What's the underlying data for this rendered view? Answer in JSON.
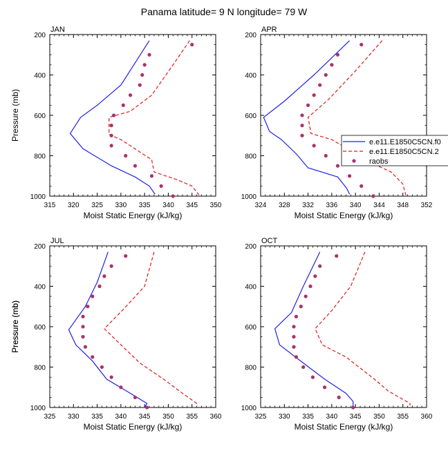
{
  "page_title": "Panama  latitude= 9 N longitude= 79 W",
  "colors": {
    "model1": "#1f1fe6",
    "model2": "#e01818",
    "raobs": "#a8336a",
    "frame": "#000000"
  },
  "legend": {
    "entries": [
      "e.e11.E1850C5CN.f0",
      "e.e11.E1850C5CN.2",
      "raobs"
    ]
  },
  "chart_data": [
    {
      "type": "line",
      "label": "JAN",
      "xlabel": "Moist Static Energy (kJ/kg)",
      "ylabel": "Pressure (mb)",
      "xlim": [
        315,
        350
      ],
      "xticks": [
        315,
        320,
        325,
        330,
        335,
        340,
        345,
        350
      ],
      "ylim": [
        200,
        1000
      ],
      "yticks": [
        200,
        400,
        600,
        800,
        1000
      ],
      "y_inverted": true,
      "series": [
        {
          "name": "e.e11.E1850C5CN.f0",
          "style": "solid",
          "points": [
            [
              336,
              230
            ],
            [
              330,
              450
            ],
            [
              325,
              550
            ],
            [
              321.5,
              610
            ],
            [
              319.3,
              690
            ],
            [
              322,
              765
            ],
            [
              328,
              850
            ],
            [
              333,
              905
            ],
            [
              336,
              950
            ],
            [
              337.2,
              990
            ]
          ]
        },
        {
          "name": "e.e11.E1850C5CN.2",
          "style": "dashed",
          "points": [
            [
              344.5,
              230
            ],
            [
              341,
              350
            ],
            [
              336.5,
              500
            ],
            [
              332,
              580
            ],
            [
              327.5,
              610
            ],
            [
              327.5,
              695
            ],
            [
              330,
              720
            ],
            [
              336.5,
              820
            ],
            [
              337,
              880
            ],
            [
              342,
              920
            ],
            [
              345,
              950
            ],
            [
              346.5,
              995
            ]
          ]
        },
        {
          "name": "raobs",
          "style": "markers",
          "points": [
            [
              345,
              250
            ],
            [
              336,
              300
            ],
            [
              335,
              350
            ],
            [
              334.5,
              400
            ],
            [
              334,
              450
            ],
            [
              332,
              500
            ],
            [
              330.5,
              550
            ],
            [
              328.5,
              600
            ],
            [
              328,
              650
            ],
            [
              328,
              700
            ],
            [
              328,
              750
            ],
            [
              331,
              800
            ],
            [
              333,
              850
            ],
            [
              336.5,
              900
            ],
            [
              338.5,
              950
            ],
            [
              341,
              1000
            ]
          ]
        }
      ]
    },
    {
      "type": "line",
      "label": "APR",
      "xlabel": "Moist Static Energy (kJ/kg)",
      "ylabel": "",
      "xlim": [
        324,
        352
      ],
      "xticks": [
        324,
        328,
        332,
        336,
        340,
        344,
        348,
        352
      ],
      "ylim": [
        200,
        1000
      ],
      "yticks": [
        200,
        400,
        600,
        800,
        1000
      ],
      "y_inverted": true,
      "series": [
        {
          "name": "e.e11.E1850C5CN.f0",
          "style": "solid",
          "points": [
            [
              339,
              230
            ],
            [
              333,
              400
            ],
            [
              328,
              530
            ],
            [
              324.5,
              610
            ],
            [
              325.5,
              680
            ],
            [
              327.5,
              720
            ],
            [
              330,
              790
            ],
            [
              332,
              860
            ],
            [
              337,
              905
            ],
            [
              338.5,
              960
            ],
            [
              339,
              990
            ]
          ]
        },
        {
          "name": "e.e11.E1850C5CN.2",
          "style": "dashed",
          "points": [
            [
              344.5,
              230
            ],
            [
              340,
              380
            ],
            [
              335.5,
              520
            ],
            [
              332,
              610
            ],
            [
              332.5,
              690
            ],
            [
              336,
              720
            ],
            [
              343,
              840
            ],
            [
              346,
              880
            ],
            [
              348,
              940
            ],
            [
              348.5,
              995
            ]
          ]
        },
        {
          "name": "raobs",
          "style": "markers",
          "points": [
            [
              341,
              250
            ],
            [
              337,
              300
            ],
            [
              336,
              350
            ],
            [
              335,
              400
            ],
            [
              334,
              450
            ],
            [
              333,
              500
            ],
            [
              332,
              550
            ],
            [
              331,
              600
            ],
            [
              331,
              650
            ],
            [
              331,
              700
            ],
            [
              333,
              750
            ],
            [
              335,
              800
            ],
            [
              337,
              850
            ],
            [
              339,
              900
            ],
            [
              341,
              950
            ],
            [
              343,
              1000
            ]
          ]
        }
      ]
    },
    {
      "type": "line",
      "label": "JUL",
      "xlabel": "Moist Static Energy (kJ/kg)",
      "ylabel": "Pressure (mb)",
      "xlim": [
        325,
        360
      ],
      "xticks": [
        325,
        330,
        335,
        340,
        345,
        350,
        355,
        360
      ],
      "ylim": [
        200,
        1000
      ],
      "yticks": [
        200,
        400,
        600,
        800,
        1000
      ],
      "y_inverted": true,
      "series": [
        {
          "name": "e.e11.E1850C5CN.f0",
          "style": "solid",
          "points": [
            [
              337.3,
              230
            ],
            [
              335,
              380
            ],
            [
              332.5,
              500
            ],
            [
              329,
              615
            ],
            [
              330.5,
              690
            ],
            [
              334,
              770
            ],
            [
              337,
              860
            ],
            [
              342,
              930
            ],
            [
              345.5,
              980
            ],
            [
              345,
              1000
            ]
          ]
        },
        {
          "name": "e.e11.E1850C5CN.2",
          "style": "dashed",
          "points": [
            [
              347,
              230
            ],
            [
              345,
              400
            ],
            [
              340.5,
              515
            ],
            [
              336.5,
              610
            ],
            [
              340,
              690
            ],
            [
              344,
              780
            ],
            [
              349,
              860
            ],
            [
              353,
              930
            ],
            [
              356,
              980
            ],
            [
              356,
              995
            ]
          ]
        },
        {
          "name": "raobs",
          "style": "markers",
          "points": [
            [
              341,
              250
            ],
            [
              338,
              300
            ],
            [
              336.5,
              350
            ],
            [
              335.5,
              400
            ],
            [
              334,
              450
            ],
            [
              333,
              500
            ],
            [
              332,
              550
            ],
            [
              332,
              600
            ],
            [
              332,
              650
            ],
            [
              332.5,
              700
            ],
            [
              334,
              750
            ],
            [
              336,
              800
            ],
            [
              338,
              850
            ],
            [
              340,
              900
            ],
            [
              343,
              950
            ],
            [
              345.5,
              1000
            ]
          ]
        }
      ]
    },
    {
      "type": "line",
      "label": "OCT",
      "xlabel": "Moist Static Energy (kJ/kg)",
      "ylabel": "Pressure (mb)",
      "xlim": [
        325,
        360
      ],
      "xticks": [
        325,
        330,
        335,
        340,
        345,
        350,
        355,
        360
      ],
      "ylim": [
        200,
        1000
      ],
      "yticks": [
        200,
        400,
        600,
        800,
        1000
      ],
      "y_inverted": true,
      "series": [
        {
          "name": "e.e11.E1850C5CN.f0",
          "style": "solid",
          "points": [
            [
              337.5,
              230
            ],
            [
              334,
              400
            ],
            [
              331.5,
              530
            ],
            [
              328,
              610
            ],
            [
              329,
              690
            ],
            [
              334,
              780
            ],
            [
              338.5,
              860
            ],
            [
              343,
              930
            ],
            [
              344.5,
              970
            ],
            [
              344.5,
              995
            ]
          ]
        },
        {
          "name": "e.e11.E1850C5CN.2",
          "style": "dashed",
          "points": [
            [
              347,
              230
            ],
            [
              344,
              400
            ],
            [
              340,
              520
            ],
            [
              336.5,
              610
            ],
            [
              338,
              690
            ],
            [
              343,
              750
            ],
            [
              349,
              860
            ],
            [
              352,
              920
            ],
            [
              356.5,
              980
            ],
            [
              356.5,
              990
            ]
          ]
        },
        {
          "name": "raobs",
          "style": "markers",
          "points": [
            [
              341,
              250
            ],
            [
              337.5,
              300
            ],
            [
              336.5,
              350
            ],
            [
              335.5,
              400
            ],
            [
              334.5,
              450
            ],
            [
              333.5,
              500
            ],
            [
              332.5,
              550
            ],
            [
              332,
              600
            ],
            [
              332,
              650
            ],
            [
              332,
              700
            ],
            [
              332.5,
              750
            ],
            [
              334,
              800
            ],
            [
              336,
              850
            ],
            [
              338.5,
              900
            ],
            [
              341.5,
              950
            ],
            [
              344.5,
              1000
            ]
          ]
        }
      ]
    }
  ]
}
